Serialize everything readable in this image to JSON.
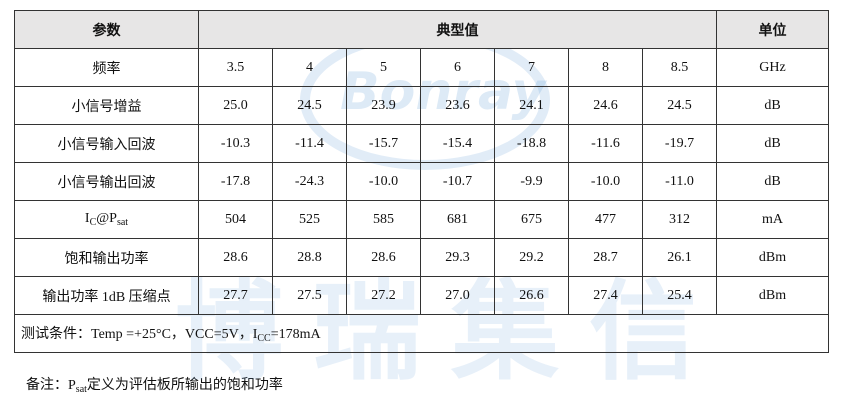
{
  "watermark": {
    "logo": "Bonray",
    "text": "博瑞集信"
  },
  "table": {
    "header": [
      "参数",
      "典型值",
      "单位"
    ],
    "rows": [
      {
        "label": [
          {
            "text": "频率"
          }
        ],
        "values": [
          "3.5",
          "4",
          "5",
          "6",
          "7",
          "8",
          "8.5"
        ],
        "unit": "GHz"
      },
      {
        "label": [
          {
            "text": "小信号增益"
          }
        ],
        "values": [
          "25.0",
          "24.5",
          "23.9",
          "23.6",
          "24.1",
          "24.6",
          "24.5"
        ],
        "unit": "dB"
      },
      {
        "label": [
          {
            "text": "小信号输入回波"
          }
        ],
        "values": [
          "-10.3",
          "-11.4",
          "-15.7",
          "-15.4",
          "-18.8",
          "-11.6",
          "-19.7"
        ],
        "unit": "dB"
      },
      {
        "label": [
          {
            "text": "小信号输出回波"
          }
        ],
        "values": [
          "-17.8",
          "-24.3",
          "-10.0",
          "-10.7",
          "-9.9",
          "-10.0",
          "-11.0"
        ],
        "unit": "dB"
      },
      {
        "label": [
          {
            "text": "I"
          },
          {
            "sub": "C"
          },
          {
            "text": "@P"
          },
          {
            "sub": "sat"
          }
        ],
        "values": [
          "504",
          "525",
          "585",
          "681",
          "675",
          "477",
          "312"
        ],
        "unit": "mA"
      },
      {
        "label": [
          {
            "text": "饱和输出功率"
          }
        ],
        "values": [
          "28.6",
          "28.8",
          "28.6",
          "29.3",
          "29.2",
          "28.7",
          "26.1"
        ],
        "unit": "dBm"
      },
      {
        "label": [
          {
            "text": "输出功率 1dB 压缩点"
          }
        ],
        "values": [
          "27.7",
          "27.5",
          "27.2",
          "27.0",
          "26.6",
          "27.4",
          "25.4"
        ],
        "unit": "dBm"
      }
    ],
    "note": [
      {
        "text": "测试条件：Temp =+25°C，VCC=5V，I"
      },
      {
        "sub": "CC"
      },
      {
        "text": "=178mA"
      }
    ]
  },
  "footnote": [
    {
      "text": "备注：P"
    },
    {
      "sub": "sat"
    },
    {
      "text": "定义为评估板所输出的饱和功率"
    }
  ]
}
